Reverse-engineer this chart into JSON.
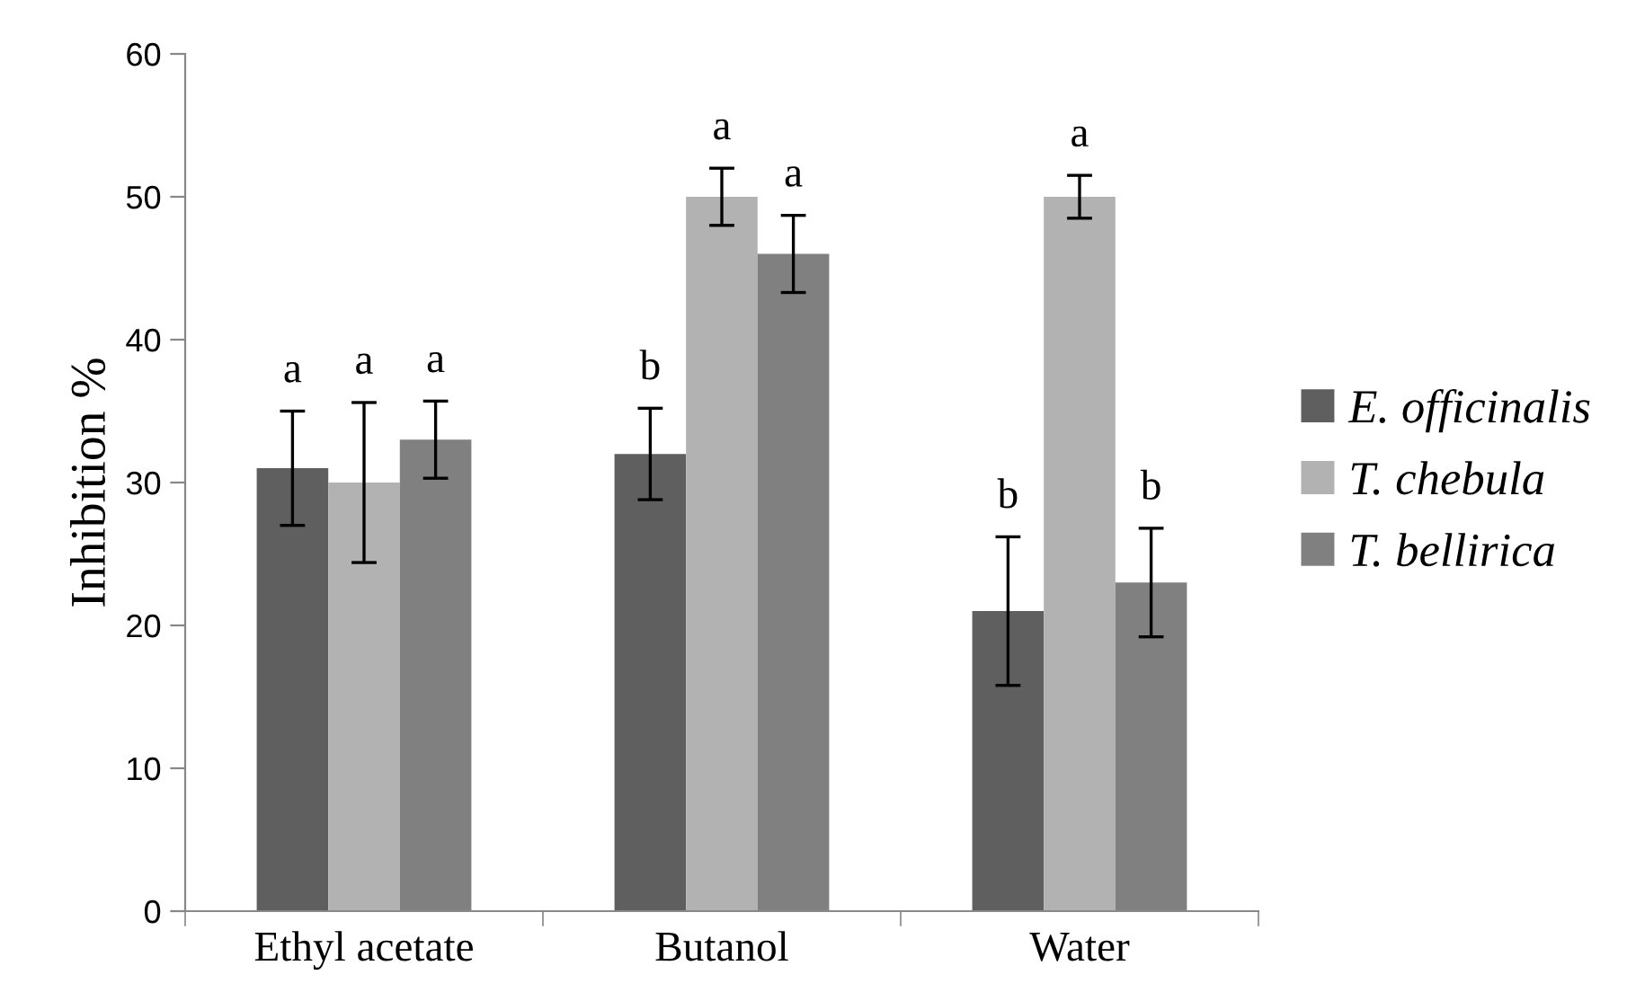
{
  "chart_data": {
    "type": "bar",
    "ylabel": "Inhibition %",
    "categories": [
      "Ethyl acetate",
      "Butanol",
      "Water"
    ],
    "series": [
      {
        "name": "E. officinalis",
        "color": "#5f5f5f",
        "values": [
          31,
          32,
          21
        ],
        "errors": [
          4,
          3.2,
          5.2
        ],
        "value_labels": [
          "a",
          "b",
          "b"
        ]
      },
      {
        "name": "T. chebula",
        "color": "#b2b2b2",
        "values": [
          30,
          50,
          50
        ],
        "errors": [
          5.6,
          2,
          1.5
        ],
        "value_labels": [
          "a",
          "a",
          "a"
        ]
      },
      {
        "name": "T. bellirica",
        "color": "#808080",
        "values": [
          33,
          46,
          23
        ],
        "errors": [
          2.7,
          2.7,
          3.8
        ],
        "value_labels": [
          "a",
          "a",
          "b"
        ]
      }
    ],
    "ylim": [
      0,
      60
    ],
    "yticks": [
      0,
      10,
      20,
      30,
      40,
      50,
      60
    ],
    "grid": false,
    "legend": "right"
  }
}
